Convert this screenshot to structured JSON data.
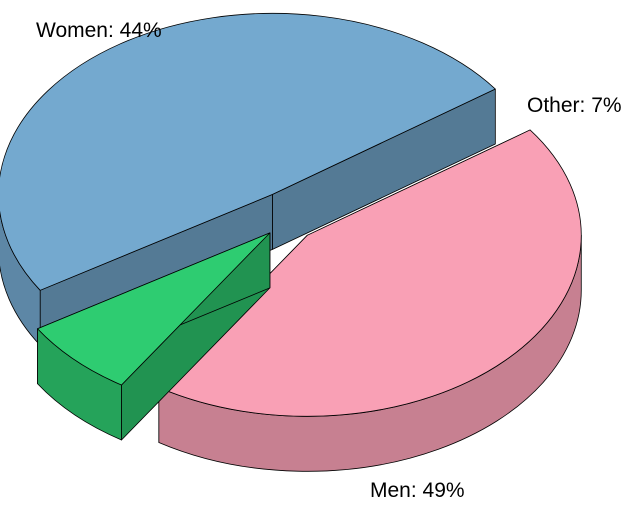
{
  "chart_data": {
    "type": "pie",
    "style": "3d-exploded",
    "slices": [
      {
        "label": "Women",
        "value": 44,
        "display": "Women: 44%",
        "color": "#F9A0B5"
      },
      {
        "label": "Other",
        "value": 7,
        "display": "Other: 7%",
        "color": "#2ECC71"
      },
      {
        "label": "Men",
        "value": 49,
        "display": "Men: 49%",
        "color": "#74A9CF"
      }
    ]
  }
}
